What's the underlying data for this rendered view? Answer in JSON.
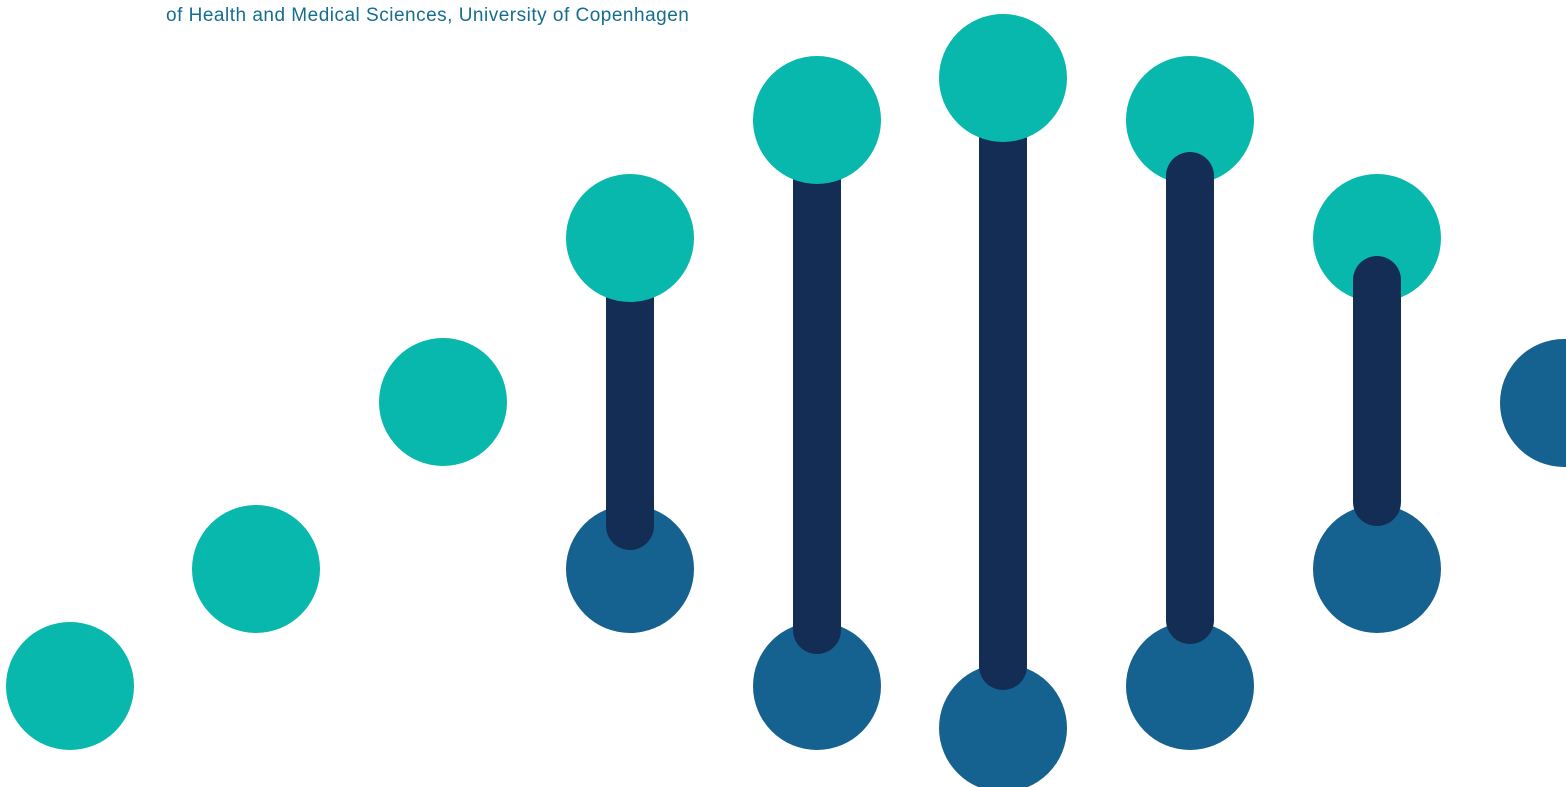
{
  "header": {
    "text": "of Health and Medical Sciences, University of Copenhagen"
  },
  "colors": {
    "teal": "#08b8ac",
    "blue": "#156190",
    "navy": "#142d54",
    "text": "#156d8f"
  }
}
